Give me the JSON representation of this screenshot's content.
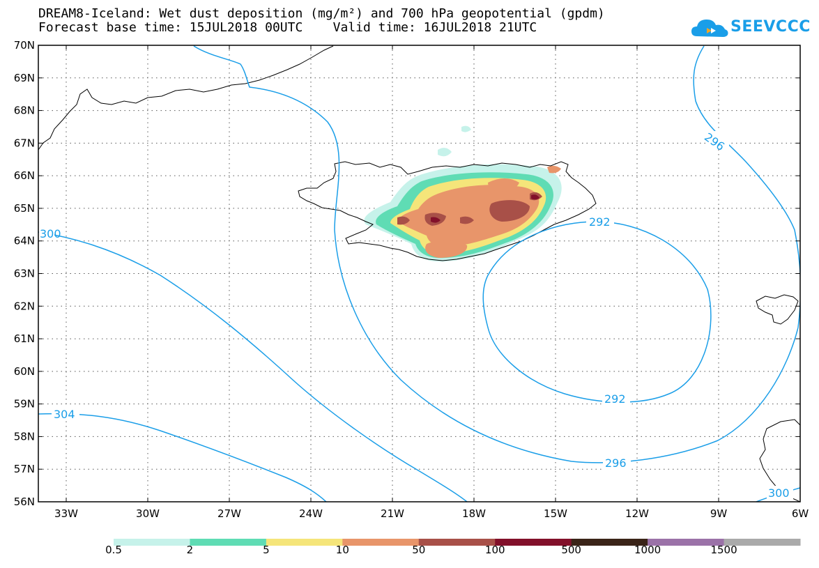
{
  "header": {
    "title_line1": "DREAM8-Iceland: Wet dust deposition (mg/m²) and 700 hPa geopotential (gpdm)",
    "title_line2": "Forecast base time: 15JUL2018 00UTC    Valid time: 16JUL2018 21UTC",
    "logo_text": "SEEVCCC"
  },
  "axes": {
    "lon_labels": [
      "33W",
      "30W",
      "27W",
      "24W",
      "21W",
      "18W",
      "15W",
      "12W",
      "9W",
      "6W"
    ],
    "lat_labels": [
      "70N",
      "69N",
      "68N",
      "67N",
      "66N",
      "65N",
      "64N",
      "63N",
      "62N",
      "61N",
      "60N",
      "59N",
      "58N",
      "57N",
      "56N"
    ],
    "grid": true
  },
  "contour_labels": {
    "c292_top": "292",
    "c292_bottom": "292",
    "c296_right": "296",
    "c296_bottom": "296",
    "c300_left": "300",
    "c300_right": "300",
    "c304_left": "304"
  },
  "colorbar": {
    "colors": [
      "#c6f2ea",
      "#5fdcb4",
      "#f5e57a",
      "#e8956a",
      "#a85048",
      "#82102a",
      "#3a2418",
      "#9b72a8",
      "#aaaaaa"
    ],
    "labels": [
      "0.5",
      "2",
      "5",
      "10",
      "50",
      "100",
      "500",
      "1000",
      "1500"
    ]
  },
  "colors": {
    "contour": "#1a9ee8",
    "coast": "#000000",
    "accent": "#1a9ee8"
  }
}
